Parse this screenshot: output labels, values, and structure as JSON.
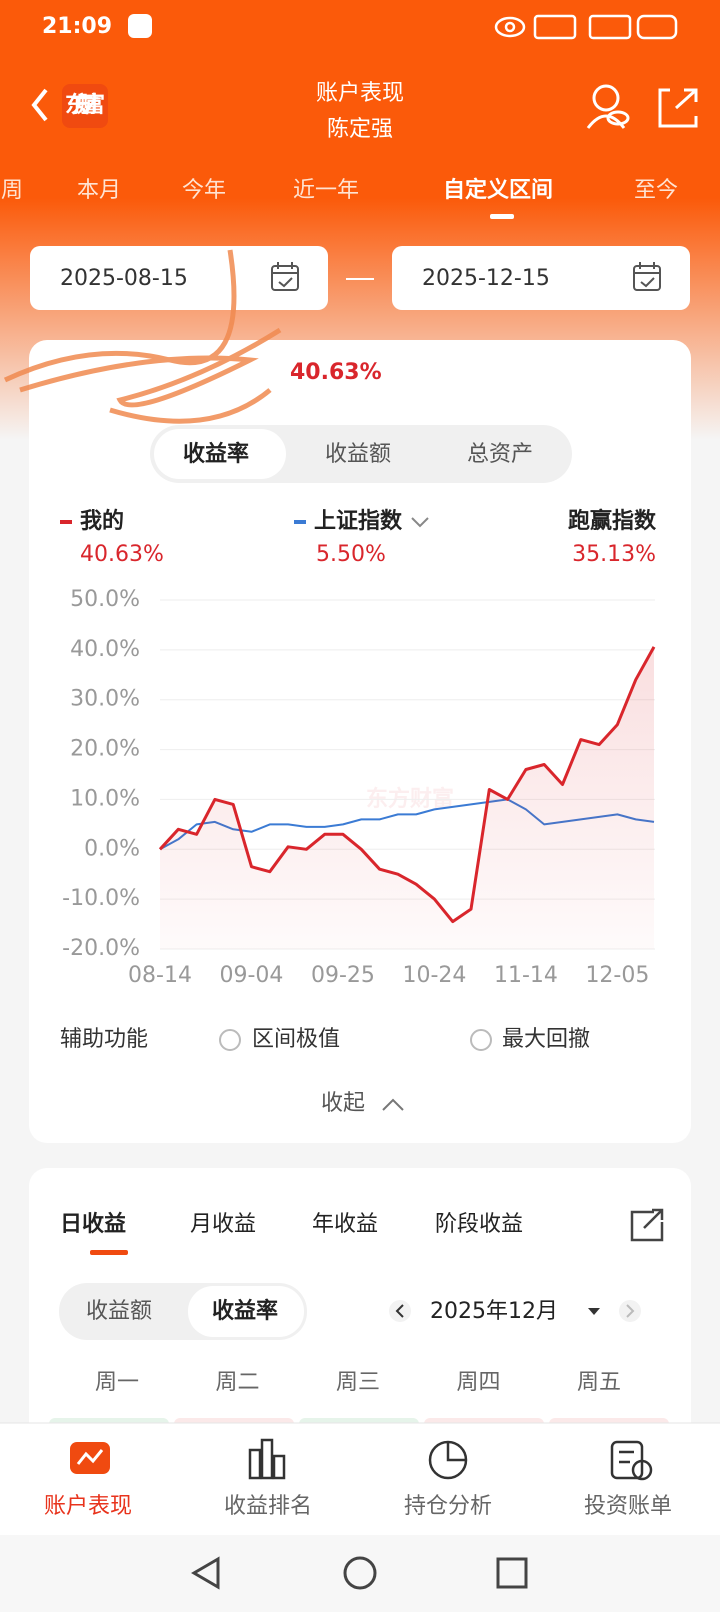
{
  "status_bar": {
    "time": "21:09"
  },
  "header": {
    "title": "账户表现",
    "subtitle": "陈定强",
    "logo": "东方财富"
  },
  "tabs": [
    "周",
    "本月",
    "今年",
    "近一年",
    "自定义区间",
    "至今"
  ],
  "date_range": {
    "start": "2025-08-15",
    "end": "2025-12-15"
  },
  "summary": {
    "return": "40.63%"
  },
  "metric_toggle": [
    "收益率",
    "收益额",
    "总资产"
  ],
  "legend": [
    {
      "name": "我的",
      "value": "40.63%"
    },
    {
      "name": "上证指数",
      "value": "5.50%"
    },
    {
      "name": "跑赢指数",
      "value": "35.13%"
    }
  ],
  "chart": {
    "type": "line",
    "watermark": "东方财富",
    "categories": [
      "08-14",
      null,
      null,
      null,
      null,
      "09-04",
      null,
      null,
      null,
      null,
      "09-25",
      null,
      null,
      null,
      null,
      "10-24",
      null,
      null,
      null,
      null,
      "11-14",
      null,
      null,
      null,
      null,
      "12-05",
      null,
      null
    ],
    "series": [
      {
        "name": "我的",
        "color": "#d9262c",
        "values": [
          0,
          4,
          3,
          10,
          9,
          -3.5,
          -4.5,
          0.5,
          0,
          3,
          3,
          0,
          -4,
          -5,
          -7,
          -10,
          -14.5,
          -12,
          12,
          10,
          16,
          17,
          13,
          22,
          21,
          25,
          34,
          40.6
        ]
      },
      {
        "name": "上证指数",
        "color": "#3b7bd4",
        "values": [
          0,
          2,
          5,
          5.5,
          4,
          3.5,
          5,
          5,
          4.5,
          4.5,
          5,
          6,
          6,
          7,
          7,
          8,
          8.5,
          9,
          9.5,
          10,
          8,
          5,
          5.5,
          6,
          6.5,
          7,
          6,
          5.5
        ]
      }
    ],
    "ylim": [
      -20,
      50
    ],
    "yticks": [
      {
        "value": 50,
        "label": "50.0%"
      },
      {
        "value": 40,
        "label": "40.0%"
      },
      {
        "value": 30,
        "label": "30.0%"
      },
      {
        "value": 20,
        "label": "20.0%"
      },
      {
        "value": 10,
        "label": "10.0%"
      },
      {
        "value": 0,
        "label": "0.0%"
      },
      {
        "value": -10,
        "label": "-10.0%"
      },
      {
        "value": -20,
        "label": "-20.0%"
      }
    ],
    "grid": true
  },
  "aux": {
    "label": "辅助功能",
    "options": [
      "区间极值",
      "最大回撤"
    ],
    "collapse": "收起"
  },
  "profit_tabs": [
    "日收益",
    "月收益",
    "年收益",
    "阶段收益"
  ],
  "profit_toggle": [
    "收益额",
    "收益率"
  ],
  "month": "2025年12月",
  "weekdays": [
    "周一",
    "周二",
    "周三",
    "周四",
    "周五"
  ],
  "bottom_nav": [
    "账户表现",
    "收益排名",
    "持仓分析",
    "投资账单"
  ]
}
